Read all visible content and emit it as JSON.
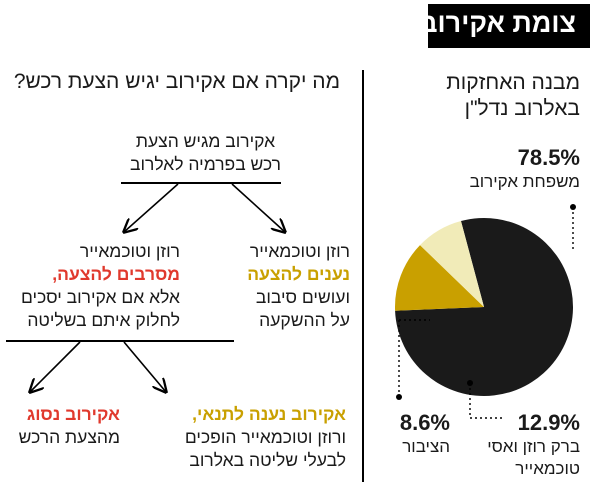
{
  "title": "צומת אקירוב",
  "pie": {
    "heading_line1": "מבנה האחזקות",
    "heading_line2": "באלרוב נדל\"ן"
  },
  "chart_data": {
    "type": "pie",
    "title": "מבנה האחזקות באלרוב נדל\"ן",
    "slices": [
      {
        "label_line1": "משפחת אקירוב",
        "label_line2": "",
        "value": 78.5,
        "value_text": "78.5%",
        "color": "#1a1a1a"
      },
      {
        "label_line1": "ברק רוזן ואסי",
        "label_line2": "טוכמאייר",
        "value": 12.9,
        "value_text": "12.9%",
        "color": "#c9a000"
      },
      {
        "label_line1": "הציבור",
        "label_line2": "",
        "value": 8.6,
        "value_text": "8.6%",
        "color": "#f1ebb8"
      }
    ]
  },
  "flow": {
    "heading": "מה יקרה אם אקירוב יגיש הצעת רכש?",
    "root_line1": "אקירוב מגיש הצעת",
    "root_line2": "רכש בפרמיה לאלרוב",
    "right_line1": "רוזן וטוכמאייר",
    "right_highlight": "נענים להצעה",
    "right_line3": "ועושים סיבוב",
    "right_line4": "על ההשקעה",
    "left_line1": "רוזן וטוכמאייר",
    "left_highlight": "מסרבים להצעה,",
    "left_line3": "אלא אם אקירוב יסכים",
    "left_line4": "לחלוק איתם בשליטה",
    "outcome_a_highlight": "אקירוב נענה לתנאי,",
    "outcome_a_line2": "ורוזן וטוכמאייר הופכים",
    "outcome_a_line3": "לבעלי שליטה באלרוב",
    "outcome_b_highlight": "אקירוב נסוג",
    "outcome_b_line2": "מהצעת הרכש"
  }
}
